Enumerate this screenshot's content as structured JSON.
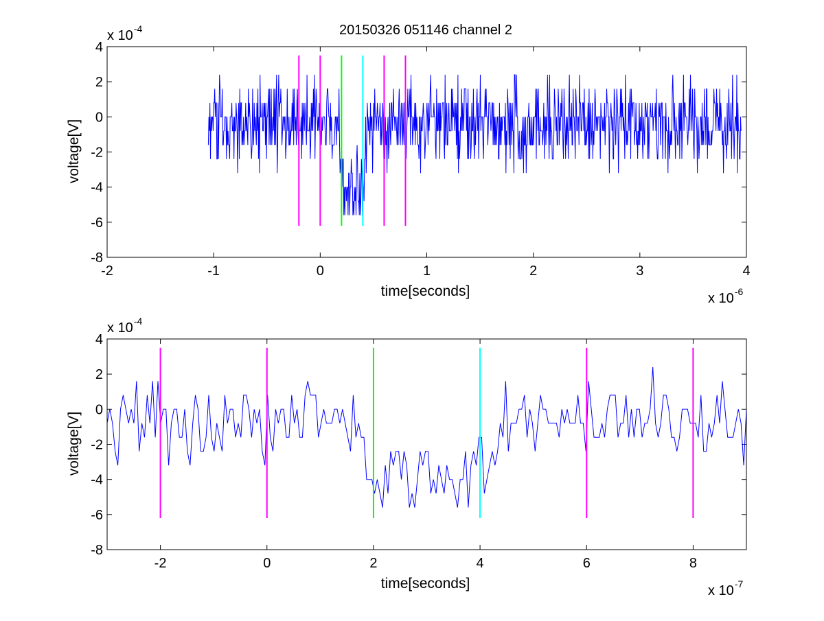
{
  "figure": {
    "title": "20150326 051146 channel 2"
  },
  "chart_data": [
    {
      "type": "line",
      "title": "20150326 051146 channel 2",
      "xlabel": "time[seconds]",
      "ylabel": "voltage[V]",
      "x_exponent_label": "x 10",
      "x_exponent": "-6",
      "y_exponent_label": "x 10",
      "y_exponent": "-4",
      "xlim": [
        -2,
        4
      ],
      "ylim": [
        -8,
        4
      ],
      "xticks": [
        -2,
        -1,
        0,
        1,
        2,
        3,
        4
      ],
      "yticks": [
        -8,
        -6,
        -4,
        -2,
        0,
        2,
        4
      ],
      "xtick_labels": [
        "-2",
        "-1",
        "0",
        "1",
        "2",
        "3",
        "4"
      ],
      "ytick_labels": [
        "-8",
        "-6",
        "-4",
        "-2",
        "0",
        "2",
        "4"
      ],
      "grid": false,
      "series": [
        {
          "color": "#0000ff",
          "x_range": [
            -1.05,
            3.95
          ],
          "points": 1000,
          "levels_step": 0.8,
          "baseline": -0.4,
          "dip": {
            "start": 0.17,
            "end": 0.44,
            "level": -4.2
          }
        }
      ],
      "markers": [
        {
          "x": -0.2,
          "color": "#ff00ff",
          "ymin": -6.2,
          "ymax": 3.5
        },
        {
          "x": 0.0,
          "color": "#ff00ff",
          "ymin": -6.2,
          "ymax": 3.5
        },
        {
          "x": 0.2,
          "color": "#00ff00",
          "ymin": -6.2,
          "ymax": 3.5
        },
        {
          "x": 0.4,
          "color": "#00ffff",
          "ymin": -6.2,
          "ymax": 3.5
        },
        {
          "x": 0.6,
          "color": "#ff00ff",
          "ymin": -6.2,
          "ymax": 3.5
        },
        {
          "x": 0.8,
          "color": "#ff00ff",
          "ymin": -6.2,
          "ymax": 3.5
        }
      ]
    },
    {
      "type": "line",
      "xlabel": "time[seconds]",
      "ylabel": "voltage[V]",
      "x_exponent_label": "x 10",
      "x_exponent": "-7",
      "y_exponent_label": "x 10",
      "y_exponent": "-4",
      "xlim": [
        -3,
        9
      ],
      "ylim": [
        -8,
        4
      ],
      "xticks": [
        -2,
        0,
        2,
        4,
        6,
        8
      ],
      "yticks": [
        -8,
        -6,
        -4,
        -2,
        0,
        2,
        4
      ],
      "xtick_labels": [
        "-2",
        "0",
        "2",
        "4",
        "6",
        "8"
      ],
      "ytick_labels": [
        "-8",
        "-6",
        "-4",
        "-2",
        "0",
        "2",
        "4"
      ],
      "grid": false,
      "series": [
        {
          "color": "#0000ff",
          "x_range": [
            -3,
            9
          ],
          "points": 240,
          "levels_step": 0.8,
          "baseline": -0.6,
          "dip": {
            "start": 1.7,
            "end": 4.4,
            "level": -4.0
          }
        }
      ],
      "markers": [
        {
          "x": -2,
          "color": "#ff00ff",
          "ymin": -6.2,
          "ymax": 3.5
        },
        {
          "x": 0,
          "color": "#ff00ff",
          "ymin": -6.2,
          "ymax": 3.5
        },
        {
          "x": 2,
          "color": "#00ff00",
          "ymin": -6.2,
          "ymax": 3.5
        },
        {
          "x": 4,
          "color": "#00ffff",
          "ymin": -6.2,
          "ymax": 3.5
        },
        {
          "x": 6,
          "color": "#ff00ff",
          "ymin": -6.2,
          "ymax": 3.5
        },
        {
          "x": 8,
          "color": "#ff00ff",
          "ymin": -6.2,
          "ymax": 3.5
        }
      ]
    }
  ]
}
